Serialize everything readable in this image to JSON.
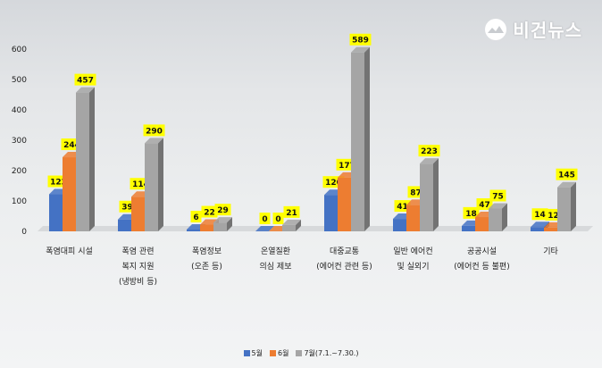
{
  "brand": {
    "name": "비건뉴스"
  },
  "chart_data": {
    "type": "bar",
    "categories": [
      [
        "폭염대피 시설"
      ],
      [
        "폭염 관련",
        "복지 지원",
        "(냉방비 등)"
      ],
      [
        "폭염정보",
        "(오존 등)"
      ],
      [
        "온열질환",
        "의심 제보"
      ],
      [
        "대중교통",
        "(에어컨 관련 등)"
      ],
      [
        "일반 에어컨",
        "및 실외기"
      ],
      [
        "공공시설",
        "(에어컨 등 불편)"
      ],
      [
        "기타"
      ]
    ],
    "series": [
      {
        "name": "5월",
        "color": "#4472c4",
        "values": [
          122,
          39,
          6,
          0,
          120,
          41,
          18,
          14
        ]
      },
      {
        "name": "6월",
        "color": "#ed7d31",
        "values": [
          244,
          114,
          22,
          0,
          177,
          87,
          47,
          12
        ]
      },
      {
        "name": "7월(7.1.~7.30.)",
        "color": "#a5a5a5",
        "values": [
          457,
          290,
          29,
          21,
          589,
          223,
          75,
          145
        ]
      }
    ],
    "ylim": [
      0,
      600
    ],
    "yticks": [
      0,
      100,
      200,
      300,
      400,
      500,
      600
    ],
    "data_label_bg": "#ffff00",
    "legend_position": "bottom",
    "grid": false
  }
}
